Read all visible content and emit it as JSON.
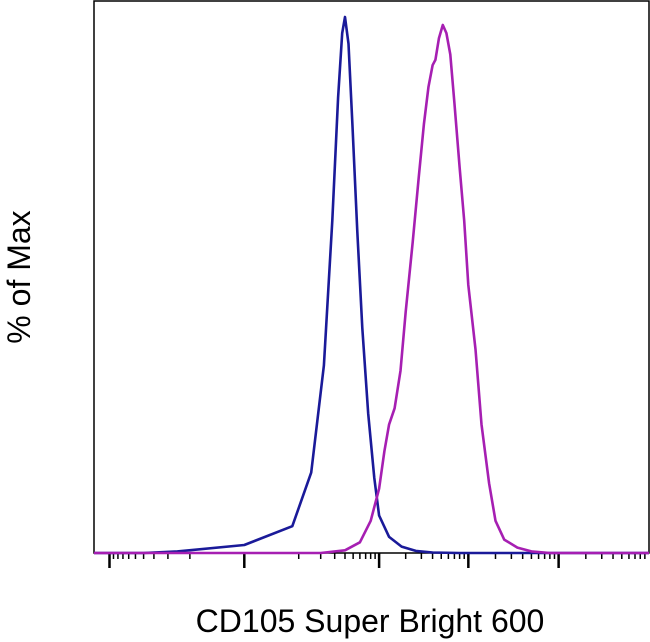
{
  "chart_data": {
    "type": "line",
    "title": "",
    "xlabel": "CD105 Super Bright 600",
    "ylabel": "% of Max",
    "x_scale": "log",
    "xlim": [
      -150,
      100000
    ],
    "ylim": [
      0,
      100
    ],
    "major_ticks_x": [
      -100,
      0,
      100,
      1000,
      10000
    ],
    "x_tick_labels": [],
    "y_tick_labels": [],
    "grid": false,
    "legend": "none",
    "series": [
      {
        "color": "#1a1a99",
        "points": [
          [
            -150,
            0
          ],
          [
            -40,
            0
          ],
          [
            -15,
            0.3
          ],
          [
            0,
            1.5
          ],
          [
            8,
            5
          ],
          [
            15,
            15
          ],
          [
            22,
            35
          ],
          [
            28,
            62
          ],
          [
            33,
            85
          ],
          [
            37,
            97
          ],
          [
            40,
            100
          ],
          [
            44,
            95
          ],
          [
            49,
            80
          ],
          [
            56,
            60
          ],
          [
            64,
            42
          ],
          [
            75,
            26
          ],
          [
            88,
            14
          ],
          [
            100,
            7
          ],
          [
            130,
            3
          ],
          [
            180,
            1.2
          ],
          [
            260,
            0.4
          ],
          [
            400,
            0.1
          ],
          [
            800,
            0
          ],
          [
            100000,
            0
          ]
        ]
      },
      {
        "color": "#a61fb2",
        "points": [
          [
            -150,
            0
          ],
          [
            20,
            0
          ],
          [
            40,
            0.5
          ],
          [
            60,
            2
          ],
          [
            80,
            6
          ],
          [
            100,
            12
          ],
          [
            115,
            19
          ],
          [
            130,
            24
          ],
          [
            150,
            27
          ],
          [
            175,
            34
          ],
          [
            200,
            45
          ],
          [
            240,
            58
          ],
          [
            280,
            70
          ],
          [
            320,
            80
          ],
          [
            360,
            87
          ],
          [
            400,
            91
          ],
          [
            430,
            92
          ],
          [
            470,
            96
          ],
          [
            520,
            98.5
          ],
          [
            570,
            97
          ],
          [
            630,
            93
          ],
          [
            700,
            84
          ],
          [
            800,
            72
          ],
          [
            900,
            62
          ],
          [
            1000,
            50
          ],
          [
            1200,
            38
          ],
          [
            1400,
            24
          ],
          [
            1700,
            13
          ],
          [
            2000,
            6
          ],
          [
            2500,
            2.5
          ],
          [
            3500,
            1
          ],
          [
            5000,
            0.3
          ],
          [
            8000,
            0
          ],
          [
            100000,
            0
          ]
        ]
      }
    ]
  }
}
